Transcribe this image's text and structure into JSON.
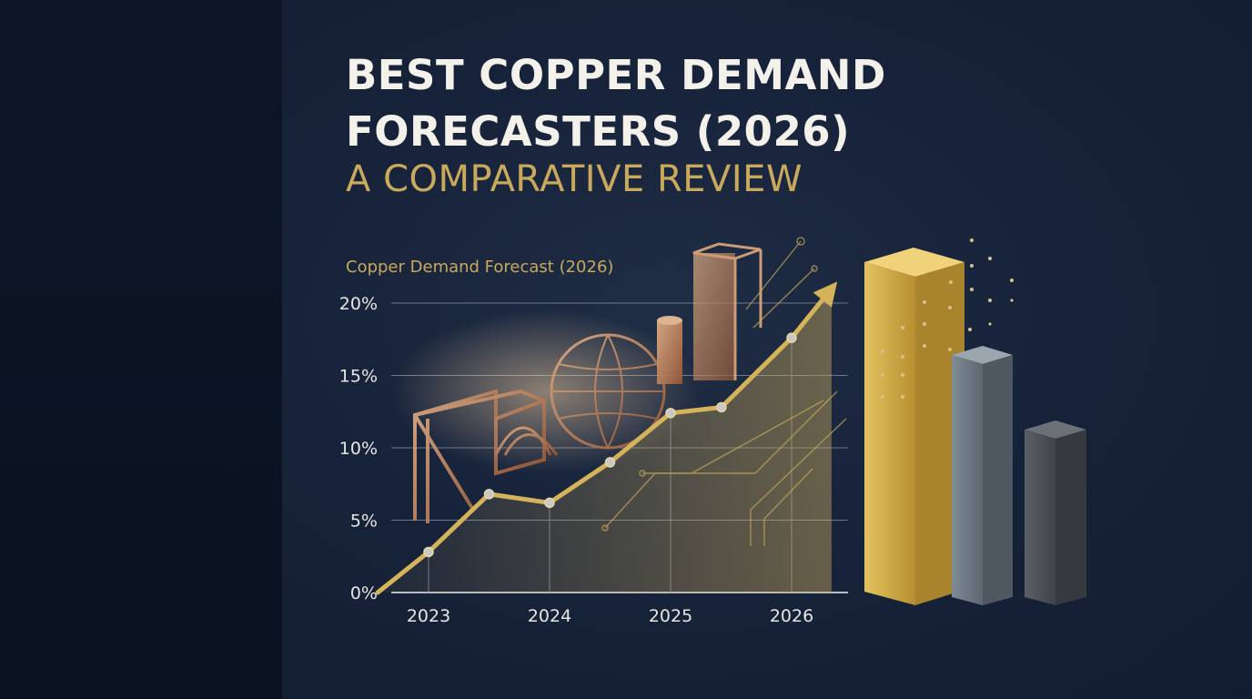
{
  "title_line1": "BEST COPPER DEMAND",
  "title_line2": "FORECASTERS (2026)",
  "subtitle": "A COMPARATIVE REVIEW",
  "colors": {
    "gold": "#c9a95b",
    "copper": "#c98a5e",
    "background": "#17233a",
    "gray_bar": "#6f7b86",
    "dark_bar": "#4a4f55"
  },
  "chart_data": [
    {
      "type": "line",
      "title": "Copper Demand Forecast (2026)",
      "x_ticks": [
        "2023",
        "2024",
        "2025",
        "2026"
      ],
      "y_ticks": [
        "0%",
        "5%",
        "10%",
        "15%",
        "20%"
      ],
      "ylim": [
        0,
        20
      ],
      "grid": true,
      "series": [
        {
          "x": [
            2022.58,
            2023.0,
            2023.5,
            2024.0,
            2024.5,
            2025.0,
            2025.42,
            2026.0,
            2026.33
          ],
          "y": [
            0.0,
            2.8,
            6.8,
            6.2,
            9.0,
            12.4,
            12.8,
            17.6,
            21.0
          ]
        }
      ]
    },
    {
      "type": "bar",
      "bars": [
        {
          "color": "gold",
          "value": 1.0
        },
        {
          "color": "gray",
          "value": 0.7
        },
        {
          "color": "dark-gray",
          "value": 0.5
        }
      ]
    }
  ]
}
